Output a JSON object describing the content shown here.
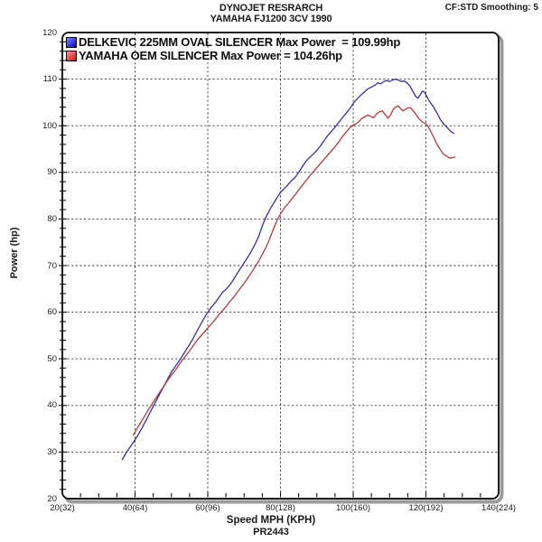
{
  "header": {
    "title_line1": "DYNOJET RESRARCH",
    "title_line2": "YAMAHA FJ1200 3CV 1990",
    "smoothing_label": "CF:STD Smoothing: 5"
  },
  "legend": {
    "items": [
      {
        "label": "DELKEVIC 225MM OVAL SILENCER Max Power  = 109.99hp",
        "swatch_from": "#8a8aff",
        "swatch_to": "#0000c0"
      },
      {
        "label": "YAMAHA OEM SILENCER Max Power = 104.26hp",
        "swatch_from": "#ff9a9a",
        "swatch_to": "#cf0f0f"
      }
    ]
  },
  "chart_data": {
    "type": "line",
    "title": "DYNOJET RESRARCH",
    "subtitle": "YAMAHA FJ1200 3CV 1990",
    "xlabel": "Speed MPH (KPH)",
    "ylabel": "Power (hp)",
    "footnote": "PR2443",
    "xlim": [
      20,
      140
    ],
    "ylim": [
      20,
      120
    ],
    "x_tick_values": [
      20,
      40,
      60,
      80,
      100,
      120,
      140
    ],
    "x_tick_labels": [
      "20(32)",
      "40(64)",
      "60(96)",
      "80(128)",
      "100(160)",
      "120(192)",
      "140(224)"
    ],
    "y_tick_values": [
      20,
      30,
      40,
      50,
      60,
      70,
      80,
      90,
      100,
      110,
      120
    ],
    "x_minor_step": 5,
    "y_minor_step": 2,
    "grid": "dashed",
    "grid_color": "#2a2a2a",
    "frame_color": "#1c1c1c",
    "shadow_color": "#9a9a9a",
    "series": [
      {
        "name": "DELKEVIC 225MM OVAL SILENCER",
        "max_power_hp": 109.99,
        "color": "#32329e",
        "points": [
          [
            36.5,
            28.4
          ],
          [
            37.3,
            29.5
          ],
          [
            38.2,
            30.6
          ],
          [
            39,
            31.5
          ],
          [
            40,
            32.6
          ],
          [
            41,
            33.9
          ],
          [
            42,
            35.3
          ],
          [
            43,
            36.8
          ],
          [
            44,
            38.3
          ],
          [
            45,
            39.8
          ],
          [
            46,
            41.3
          ],
          [
            47,
            42.8
          ],
          [
            48,
            44.2
          ],
          [
            49,
            45.7
          ],
          [
            50,
            47.2
          ],
          [
            51,
            48.3
          ],
          [
            52,
            49.4
          ],
          [
            53,
            50.6
          ],
          [
            54,
            51.8
          ],
          [
            55,
            53.1
          ],
          [
            56,
            54.4
          ],
          [
            57,
            55.9
          ],
          [
            58,
            57.3
          ],
          [
            59,
            58.7
          ],
          [
            60,
            60.0
          ],
          [
            61,
            61.1
          ],
          [
            62,
            62.0
          ],
          [
            63,
            63.1
          ],
          [
            64,
            64.2
          ],
          [
            65,
            64.9
          ],
          [
            66,
            65.8
          ],
          [
            67,
            66.9
          ],
          [
            68,
            68.2
          ],
          [
            69,
            69.4
          ],
          [
            70,
            70.6
          ],
          [
            71,
            71.8
          ],
          [
            72,
            73.1
          ],
          [
            73,
            74.6
          ],
          [
            74,
            76.3
          ],
          [
            75,
            78.5
          ],
          [
            76,
            80.4
          ],
          [
            77,
            81.9
          ],
          [
            78,
            83.2
          ],
          [
            79,
            84.5
          ],
          [
            80,
            85.7
          ],
          [
            81,
            86.5
          ],
          [
            82,
            87.3
          ],
          [
            83,
            88.2
          ],
          [
            84,
            88.9
          ],
          [
            85,
            90.0
          ],
          [
            86,
            91.2
          ],
          [
            87,
            92.4
          ],
          [
            88,
            93.2
          ],
          [
            89,
            93.9
          ],
          [
            90,
            94.7
          ],
          [
            91,
            95.7
          ],
          [
            92,
            96.8
          ],
          [
            93,
            97.9
          ],
          [
            94,
            98.8
          ],
          [
            95,
            99.7
          ],
          [
            96,
            100.7
          ],
          [
            97,
            101.7
          ],
          [
            98,
            102.6
          ],
          [
            99,
            103.6
          ],
          [
            100,
            104.8
          ],
          [
            101,
            105.7
          ],
          [
            102,
            106.5
          ],
          [
            103,
            107.2
          ],
          [
            104,
            107.9
          ],
          [
            105,
            108.3
          ],
          [
            106,
            108.7
          ],
          [
            106.8,
            109.2
          ],
          [
            107.6,
            109.0
          ],
          [
            108.4,
            109.5
          ],
          [
            109.2,
            109.7
          ],
          [
            110,
            109.5
          ],
          [
            110.8,
            109.8
          ],
          [
            111.6,
            110.0
          ],
          [
            112.4,
            109.8
          ],
          [
            113.2,
            109.5
          ],
          [
            114,
            109.6
          ],
          [
            114.8,
            109.2
          ],
          [
            115.6,
            108.5
          ],
          [
            116.4,
            107.4
          ],
          [
            117.2,
            106.3
          ],
          [
            117.8,
            105.9
          ],
          [
            118.4,
            106.6
          ],
          [
            119,
            107.4
          ],
          [
            119.6,
            107.2
          ],
          [
            120.3,
            106.2
          ],
          [
            121,
            105.2
          ],
          [
            122,
            104.1
          ],
          [
            123,
            102.8
          ],
          [
            124,
            101.3
          ],
          [
            125,
            100.3
          ],
          [
            126,
            99.5
          ],
          [
            126.8,
            98.8
          ],
          [
            127.6,
            98.4
          ]
        ]
      },
      {
        "name": "YAMAHA OEM SILENCER",
        "max_power_hp": 104.26,
        "color": "#b23a3a",
        "points": [
          [
            39.5,
            33.6
          ],
          [
            40.3,
            34.7
          ],
          [
            41.2,
            35.9
          ],
          [
            42,
            36.9
          ],
          [
            43,
            38.2
          ],
          [
            44,
            39.5
          ],
          [
            45,
            40.7
          ],
          [
            46,
            41.9
          ],
          [
            47,
            43.1
          ],
          [
            48,
            44.2
          ],
          [
            49,
            45.4
          ],
          [
            50,
            46.5
          ],
          [
            51,
            47.5
          ],
          [
            52,
            48.6
          ],
          [
            53,
            49.7
          ],
          [
            54,
            50.7
          ],
          [
            55,
            51.7
          ],
          [
            56,
            52.8
          ],
          [
            57,
            53.9
          ],
          [
            58,
            54.8
          ],
          [
            59,
            55.7
          ],
          [
            60,
            56.6
          ],
          [
            61,
            57.5
          ],
          [
            62,
            58.4
          ],
          [
            63,
            59.4
          ],
          [
            64,
            60.3
          ],
          [
            65,
            61.2
          ],
          [
            66,
            62.2
          ],
          [
            67,
            63.1
          ],
          [
            68,
            64.1
          ],
          [
            69,
            65.2
          ],
          [
            70,
            66.2
          ],
          [
            71,
            67.3
          ],
          [
            72,
            68.5
          ],
          [
            73,
            69.7
          ],
          [
            74,
            71.0
          ],
          [
            75,
            72.4
          ],
          [
            76,
            73.9
          ],
          [
            77,
            75.7
          ],
          [
            78,
            77.7
          ],
          [
            79,
            79.6
          ],
          [
            80,
            81.1
          ],
          [
            81,
            82.3
          ],
          [
            82,
            83.2
          ],
          [
            83,
            84.2
          ],
          [
            84,
            85.2
          ],
          [
            85,
            86.2
          ],
          [
            86,
            87.2
          ],
          [
            87,
            88.2
          ],
          [
            88,
            89.2
          ],
          [
            89,
            90.1
          ],
          [
            90,
            91.0
          ],
          [
            91,
            91.9
          ],
          [
            92,
            92.8
          ],
          [
            93,
            93.7
          ],
          [
            94,
            94.6
          ],
          [
            95,
            95.5
          ],
          [
            96,
            96.5
          ],
          [
            97,
            97.6
          ],
          [
            98,
            98.6
          ],
          [
            99,
            99.5
          ],
          [
            100,
            100.2
          ],
          [
            100.8,
            100.4
          ],
          [
            101.6,
            100.9
          ],
          [
            102.4,
            101.6
          ],
          [
            103.2,
            101.9
          ],
          [
            104,
            102.3
          ],
          [
            104.8,
            102.0
          ],
          [
            105.6,
            101.7
          ],
          [
            106.4,
            102.5
          ],
          [
            107.2,
            103.0
          ],
          [
            108,
            103.2
          ],
          [
            108.8,
            102.4
          ],
          [
            109.5,
            101.6
          ],
          [
            110.2,
            102.2
          ],
          [
            111,
            103.5
          ],
          [
            111.8,
            104.1
          ],
          [
            112.4,
            104.26
          ],
          [
            113,
            103.7
          ],
          [
            113.7,
            103.2
          ],
          [
            114.4,
            103.5
          ],
          [
            115.1,
            103.9
          ],
          [
            115.8,
            103.8
          ],
          [
            116.5,
            103.2
          ],
          [
            117.2,
            102.5
          ],
          [
            118,
            101.6
          ],
          [
            119,
            100.8
          ],
          [
            120,
            100.4
          ],
          [
            120.8,
            99.6
          ],
          [
            121.6,
            98.4
          ],
          [
            122.4,
            97.1
          ],
          [
            123.2,
            95.8
          ],
          [
            124,
            94.8
          ],
          [
            124.8,
            94.0
          ],
          [
            125.6,
            93.5
          ],
          [
            126.4,
            93.1
          ],
          [
            127.2,
            93.1
          ],
          [
            128,
            93.3
          ]
        ]
      }
    ]
  }
}
